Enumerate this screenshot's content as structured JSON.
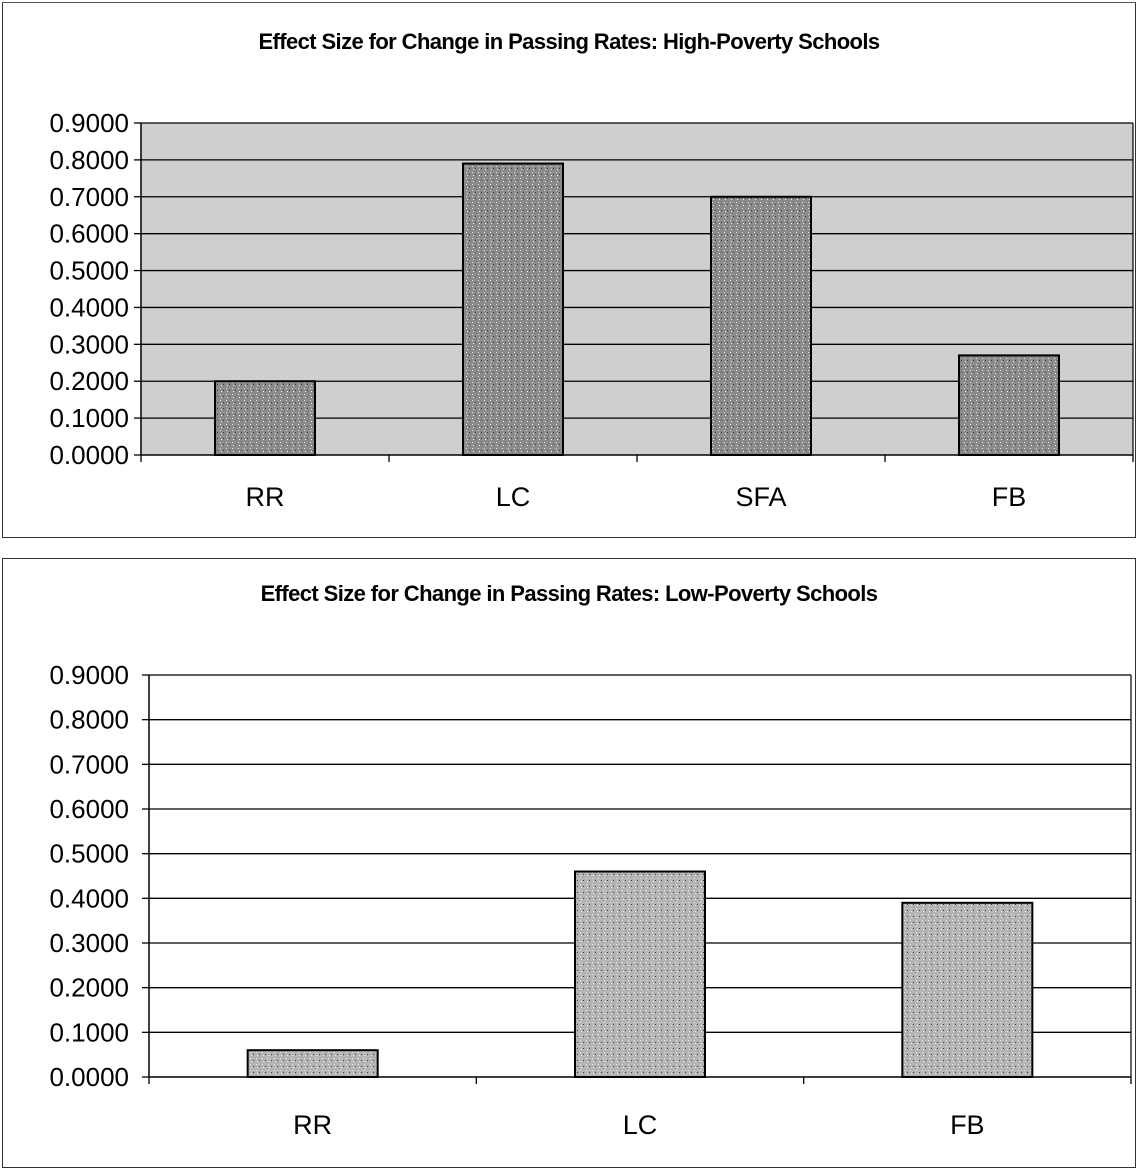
{
  "chart_data": [
    {
      "type": "bar",
      "title": "Effect Size for Change in  Passing Rates: High-Poverty Schools",
      "xlabel": "",
      "ylabel": "",
      "categories": [
        "RR",
        "LC",
        "SFA",
        "FB"
      ],
      "values": [
        0.2,
        0.79,
        0.7,
        0.27
      ],
      "ylim": [
        0,
        0.9
      ],
      "yticks": [
        "0.0000",
        "0.1000",
        "0.2000",
        "0.3000",
        "0.4000",
        "0.5000",
        "0.6000",
        "0.7000",
        "0.8000",
        "0.9000"
      ],
      "grid": true,
      "legend": "none",
      "colors": {
        "plot_background": "#cfcfcf",
        "bar_fill": "#8a8a8a",
        "bar_edge": "#000000",
        "gridline": "#000000"
      }
    },
    {
      "type": "bar",
      "title": "Effect Size for Change in  Passing Rates: Low-Poverty Schools",
      "xlabel": "",
      "ylabel": "",
      "categories": [
        "RR",
        "LC",
        "FB"
      ],
      "values": [
        0.06,
        0.46,
        0.39
      ],
      "ylim": [
        0,
        0.9
      ],
      "yticks": [
        "0.0000",
        "0.1000",
        "0.2000",
        "0.3000",
        "0.4000",
        "0.5000",
        "0.6000",
        "0.7000",
        "0.8000",
        "0.9000"
      ],
      "grid": true,
      "legend": "none",
      "colors": {
        "plot_background": "#ffffff",
        "bar_fill": "#b4b4b4",
        "bar_edge": "#000000",
        "gridline": "#000000"
      }
    }
  ]
}
